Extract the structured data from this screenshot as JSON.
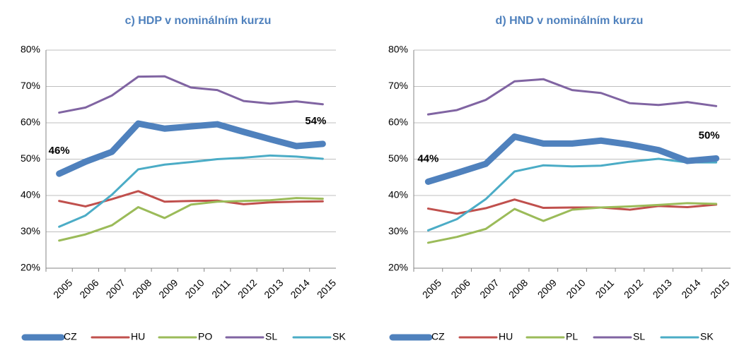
{
  "chart_data": [
    {
      "type": "line",
      "title": "c) HDP v nominálním kurzu",
      "categories": [
        "2005",
        "2006",
        "2007",
        "2008",
        "2009",
        "2010",
        "2011",
        "2012",
        "2013",
        "2014",
        "2015"
      ],
      "ylim": [
        20,
        80
      ],
      "yticks": [
        {
          "value": 20,
          "label": "20%"
        },
        {
          "value": 30,
          "label": "30%"
        },
        {
          "value": 40,
          "label": "40%"
        },
        {
          "value": 50,
          "label": "50%"
        },
        {
          "value": 60,
          "label": "60%"
        },
        {
          "value": 70,
          "label": "70%"
        },
        {
          "value": 80,
          "label": "80%"
        }
      ],
      "grid": true,
      "series": [
        {
          "name": "CZ",
          "color": "#4f81bd",
          "values": [
            46,
            49.3,
            52,
            59.8,
            58.4,
            59,
            59.6,
            57.5,
            55.5,
            53.6,
            54.2
          ],
          "value_labels": [
            "46%",
            null,
            null,
            null,
            null,
            null,
            null,
            null,
            null,
            null,
            "54%"
          ]
        },
        {
          "name": "HU",
          "color": "#c0504d",
          "values": [
            38.5,
            37,
            39,
            41.2,
            38.3,
            38.5,
            38.6,
            37.6,
            38.1,
            38.3,
            38.4
          ]
        },
        {
          "name": "PO",
          "color": "#9bbb59",
          "values": [
            27.6,
            29.3,
            31.8,
            36.8,
            33.8,
            37.5,
            38.3,
            38.5,
            38.7,
            39.3,
            39.1
          ]
        },
        {
          "name": "SL",
          "color": "#8064a2",
          "values": [
            62.8,
            64.2,
            67.5,
            72.7,
            72.8,
            69.7,
            69,
            66,
            65.3,
            65.9,
            65.1
          ]
        },
        {
          "name": "SK",
          "color": "#4bacc6",
          "values": [
            31.4,
            34.5,
            40.2,
            47.2,
            48.5,
            49.2,
            50,
            50.4,
            51,
            50.7,
            50.1
          ]
        }
      ]
    },
    {
      "type": "line",
      "title": "d) HND v nominálním kurzu",
      "categories": [
        "2005",
        "2006",
        "2007",
        "2008",
        "2009",
        "2010",
        "2011",
        "2012",
        "2013",
        "2014",
        "2015"
      ],
      "ylim": [
        20,
        80
      ],
      "yticks": [
        {
          "value": 20,
          "label": "20%"
        },
        {
          "value": 30,
          "label": "30%"
        },
        {
          "value": 40,
          "label": "40%"
        },
        {
          "value": 50,
          "label": "50%"
        },
        {
          "value": 60,
          "label": "60%"
        },
        {
          "value": 70,
          "label": "70%"
        },
        {
          "value": 80,
          "label": "80%"
        }
      ],
      "grid": true,
      "series": [
        {
          "name": "CZ",
          "color": "#4f81bd",
          "values": [
            43.8,
            46.2,
            48.7,
            56.2,
            54.3,
            54.3,
            55.1,
            54,
            52.5,
            49.5,
            50.2
          ],
          "value_labels": [
            "44%",
            null,
            null,
            null,
            null,
            null,
            null,
            null,
            null,
            null,
            "50%"
          ]
        },
        {
          "name": "HU",
          "color": "#c0504d",
          "values": [
            36.4,
            35,
            36.5,
            38.9,
            36.6,
            36.7,
            36.7,
            36.1,
            37.1,
            36.8,
            37.5
          ]
        },
        {
          "name": "PL",
          "color": "#9bbb59",
          "values": [
            27,
            28.6,
            30.8,
            36.3,
            33,
            36.1,
            36.7,
            37,
            37.4,
            37.9,
            37.7
          ]
        },
        {
          "name": "SL",
          "color": "#8064a2",
          "values": [
            62.3,
            63.5,
            66.3,
            71.4,
            72,
            69,
            68.2,
            65.4,
            64.9,
            65.7,
            64.6
          ]
        },
        {
          "name": "SK",
          "color": "#4bacc6",
          "values": [
            30.4,
            33.5,
            39,
            46.6,
            48.3,
            48,
            48.2,
            49.3,
            50.1,
            49.1,
            49.1
          ]
        }
      ]
    }
  ]
}
